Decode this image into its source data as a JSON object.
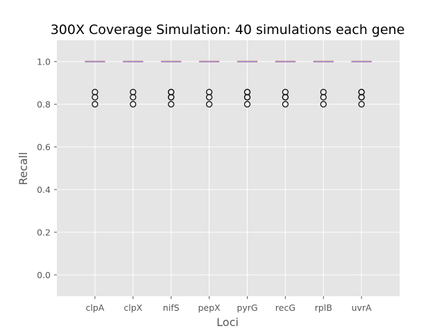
{
  "chart_data": {
    "type": "box",
    "title": "300X Coverage Simulation: 40 simulations each gene",
    "xlabel": "Loci",
    "ylabel": "Recall",
    "ylim": [
      -0.1,
      1.1
    ],
    "yticks": [
      "0.0",
      "0.2",
      "0.4",
      "0.6",
      "0.8",
      "1.0"
    ],
    "categories": [
      "clpA",
      "clpX",
      "nifS",
      "pepX",
      "pyrG",
      "recG",
      "rplB",
      "uvrA"
    ],
    "grid": true,
    "style": {
      "background": "#E5E5E5",
      "grid_color": "#FFFFFF",
      "box_color": "#E24A33",
      "median_color": "#988ED5",
      "flier_color": "#000000"
    },
    "boxes": [
      {
        "name": "clpA",
        "q1": 1.0,
        "median": 1.0,
        "q3": 1.0,
        "whisker_low": 1.0,
        "whisker_high": 1.0,
        "outliers": [
          0.857,
          0.833,
          0.8
        ]
      },
      {
        "name": "clpX",
        "q1": 1.0,
        "median": 1.0,
        "q3": 1.0,
        "whisker_low": 1.0,
        "whisker_high": 1.0,
        "outliers": [
          0.857,
          0.833,
          0.8
        ]
      },
      {
        "name": "nifS",
        "q1": 1.0,
        "median": 1.0,
        "q3": 1.0,
        "whisker_low": 1.0,
        "whisker_high": 1.0,
        "outliers": [
          0.857,
          0.857,
          0.833,
          0.833,
          0.8
        ]
      },
      {
        "name": "pepX",
        "q1": 1.0,
        "median": 1.0,
        "q3": 1.0,
        "whisker_low": 1.0,
        "whisker_high": 1.0,
        "outliers": [
          0.857,
          0.833,
          0.8
        ]
      },
      {
        "name": "pyrG",
        "q1": 1.0,
        "median": 1.0,
        "q3": 1.0,
        "whisker_low": 1.0,
        "whisker_high": 1.0,
        "outliers": [
          0.857,
          0.857,
          0.833,
          0.833,
          0.8
        ]
      },
      {
        "name": "recG",
        "q1": 1.0,
        "median": 1.0,
        "q3": 1.0,
        "whisker_low": 1.0,
        "whisker_high": 1.0,
        "outliers": [
          0.857,
          0.833,
          0.833,
          0.8
        ]
      },
      {
        "name": "rplB",
        "q1": 1.0,
        "median": 1.0,
        "q3": 1.0,
        "whisker_low": 1.0,
        "whisker_high": 1.0,
        "outliers": [
          0.857,
          0.833,
          0.8
        ]
      },
      {
        "name": "uvrA",
        "q1": 1.0,
        "median": 1.0,
        "q3": 1.0,
        "whisker_low": 1.0,
        "whisker_high": 1.0,
        "outliers": [
          0.857,
          0.857,
          0.833,
          0.833,
          0.8
        ]
      }
    ]
  }
}
